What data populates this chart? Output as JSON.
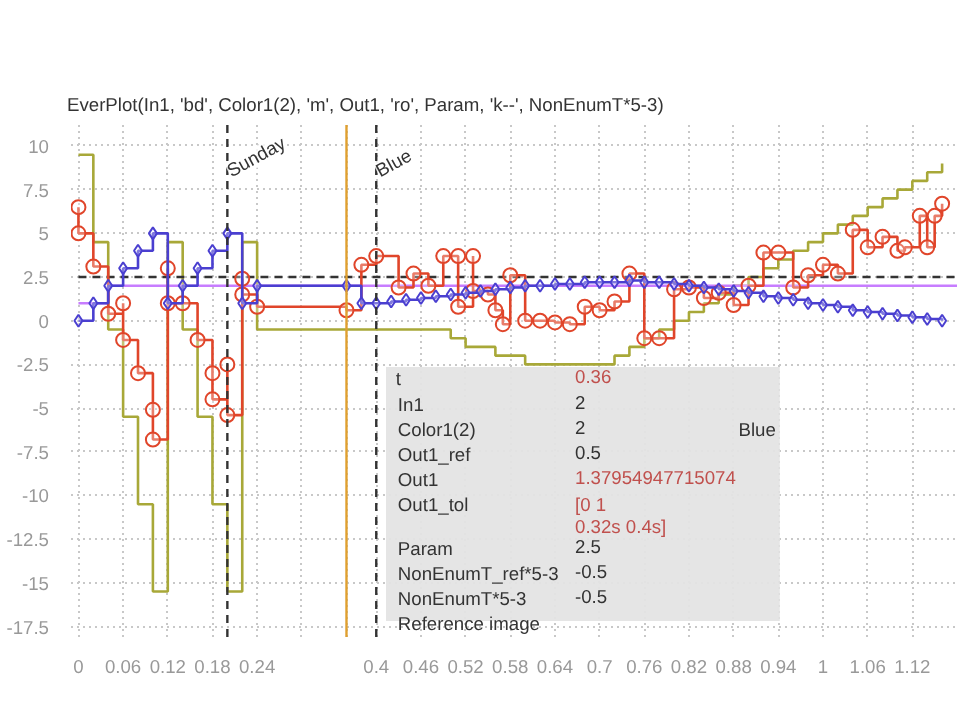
{
  "chart_data": {
    "type": "step",
    "title": "EverPlot(In1, 'bd', Color1(2), 'm', Out1, 'ro', Param, 'k--', NonEnumT*5-3)",
    "xlim": [
      -0.01,
      1.18
    ],
    "ylim": [
      -18.1,
      11.2
    ],
    "xticks": [
      0,
      0.06,
      0.12,
      0.18,
      0.24,
      {
        "value": 0.3,
        "label": null
      },
      {
        "value": 0.36,
        "label": null
      },
      0.4,
      0.46,
      0.52,
      0.58,
      0.64,
      0.7,
      0.76,
      0.82,
      0.88,
      0.94,
      1,
      1.06,
      1.12
    ],
    "yticks": [
      10,
      7.5,
      5,
      2.5,
      0,
      -2.5,
      -5,
      -7.5,
      -10,
      -12.5,
      -15,
      -17.5
    ],
    "grid": true,
    "series": [
      {
        "color": "#a8a838",
        "marker": "none",
        "x": [
          0,
          0.02,
          0.04,
          0.06,
          0.08,
          0.1,
          0.12,
          0.14,
          0.16,
          0.18,
          0.2,
          0.22,
          0.24,
          0.5,
          0.52,
          0.56,
          0.6,
          0.66,
          0.72,
          0.74,
          0.76,
          0.78,
          0.8,
          0.82,
          0.84,
          0.86,
          0.88,
          0.9,
          0.92,
          0.94,
          0.96,
          0.98,
          1.0,
          1.02,
          1.04,
          1.06,
          1.08,
          1.1,
          1.12,
          1.14,
          1.16
        ],
        "values": [
          9.5,
          4.5,
          -0.5,
          -5.5,
          -10.5,
          -15.5,
          4.5,
          -0.5,
          -5.5,
          -10.5,
          -15.5,
          4.5,
          -0.5,
          -1.0,
          -1.5,
          -2.0,
          -2.5,
          -2.5,
          -2.0,
          -1.5,
          -1.0,
          -0.5,
          0,
          0.5,
          1.0,
          1.5,
          2.0,
          2.5,
          3.0,
          3.5,
          4.0,
          4.5,
          5.0,
          5.5,
          6.0,
          6.5,
          7.0,
          7.5,
          8.0,
          8.5,
          9.0
        ]
      },
      {
        "type": "line",
        "color": "#333333",
        "marker": "none",
        "line_style": "dashed",
        "x": [
          0,
          1.18
        ],
        "values": [
          2.5,
          2.5
        ]
      },
      {
        "color": "#c77dff",
        "marker": "none",
        "x": [
          0,
          0.04,
          1.18
        ],
        "values": [
          1,
          2,
          2
        ]
      },
      {
        "color": "#e0452a",
        "marker": "circle",
        "x": [
          0,
          0,
          0.02,
          0.04,
          0.06,
          0.06,
          0.08,
          0.1,
          0.1,
          0.12,
          0.12,
          0.14,
          0.16,
          0.18,
          0.18,
          0.2,
          0.2,
          0.22,
          0.22,
          0.24,
          0.36,
          0.38,
          0.4,
          0.43,
          0.45,
          0.47,
          0.49,
          0.51,
          0.51,
          0.53,
          0.53,
          0.55,
          0.56,
          0.57,
          0.58,
          0.6,
          0.62,
          0.64,
          0.66,
          0.68,
          0.7,
          0.72,
          0.74,
          0.76,
          0.78,
          0.8,
          0.82,
          0.84,
          0.86,
          0.88,
          0.9,
          0.92,
          0.94,
          0.96,
          0.98,
          1.0,
          1.02,
          1.04,
          1.06,
          1.08,
          1.1,
          1.11,
          1.13,
          1.14,
          1.15,
          1.16
        ],
        "values": [
          6.5,
          5.0,
          3.1,
          0.4,
          1.0,
          -1.1,
          -3.0,
          -5.1,
          -6.8,
          3.0,
          1.0,
          1.0,
          -1.1,
          -3.0,
          -4.5,
          -2.5,
          -5.4,
          2.4,
          1.5,
          0.8,
          0.6,
          3.2,
          3.7,
          1.9,
          2.7,
          2.0,
          3.7,
          3.7,
          0.8,
          3.7,
          1.7,
          1.5,
          0.6,
          -0.2,
          2.6,
          0,
          0,
          -0.1,
          -0.2,
          0.8,
          0.6,
          1.1,
          2.7,
          -1.0,
          -1.0,
          1.8,
          1.9,
          1.3,
          1.6,
          0.9,
          2.0,
          3.9,
          3.9,
          1.9,
          2.6,
          3.2,
          2.7,
          5.2,
          4.2,
          4.8,
          4.0,
          4.2,
          6.0,
          4.2,
          6.0,
          6.7
        ]
      },
      {
        "color": "#4a3fd0",
        "marker": "diamond",
        "x": [
          0,
          0.02,
          0.04,
          0.06,
          0.08,
          0.1,
          0.12,
          0.14,
          0.16,
          0.18,
          0.2,
          0.22,
          0.24,
          0.36,
          0.38,
          0.4,
          0.42,
          0.44,
          0.46,
          0.48,
          0.5,
          0.52,
          0.54,
          0.56,
          0.58,
          0.6,
          0.62,
          0.64,
          0.66,
          0.68,
          0.7,
          0.72,
          0.74,
          0.76,
          0.78,
          0.8,
          0.82,
          0.84,
          0.86,
          0.88,
          0.9,
          0.92,
          0.94,
          0.96,
          0.98,
          1.0,
          1.02,
          1.04,
          1.06,
          1.08,
          1.1,
          1.12,
          1.14,
          1.16
        ],
        "values": [
          0,
          1,
          2,
          3,
          4,
          5,
          1,
          2,
          3,
          4,
          5,
          1,
          2,
          2,
          1,
          1.0,
          1.1,
          1.2,
          1.3,
          1.4,
          1.5,
          1.6,
          1.7,
          1.8,
          1.9,
          2.0,
          2.0,
          2.1,
          2.1,
          2.2,
          2.2,
          2.2,
          2.3,
          2.2,
          2.2,
          2.1,
          2.0,
          1.9,
          1.8,
          1.7,
          1.6,
          1.4,
          1.3,
          1.2,
          1.0,
          0.9,
          0.8,
          0.6,
          0.5,
          0.4,
          0.3,
          0.2,
          0.1,
          0.0
        ]
      }
    ],
    "ref_lines": [
      {
        "axis": "x",
        "value": 0.2,
        "label": "Sunday",
        "color": "#333333",
        "line_style": "dashed"
      },
      {
        "axis": "x",
        "value": 0.4,
        "label": "Blue",
        "color": "#333333",
        "line_style": "dashed"
      },
      {
        "axis": "x",
        "value": 0.36,
        "color": "#e0a030",
        "line_style": "solid"
      }
    ],
    "annotations": [
      "t",
      "0.36",
      "In1",
      "2",
      "Color1(2)",
      "2",
      "Blue",
      "Out1_ref",
      "0.5",
      "Out1",
      "1.37954947715074",
      "Out1_tol",
      "[0 1\n0.32s 0.4s]",
      "Param",
      "2.5",
      "NonEnumT_ref*5-3",
      "-0.5",
      "NonEnumT*5-3",
      "-0.5",
      "Reference image"
    ]
  }
}
